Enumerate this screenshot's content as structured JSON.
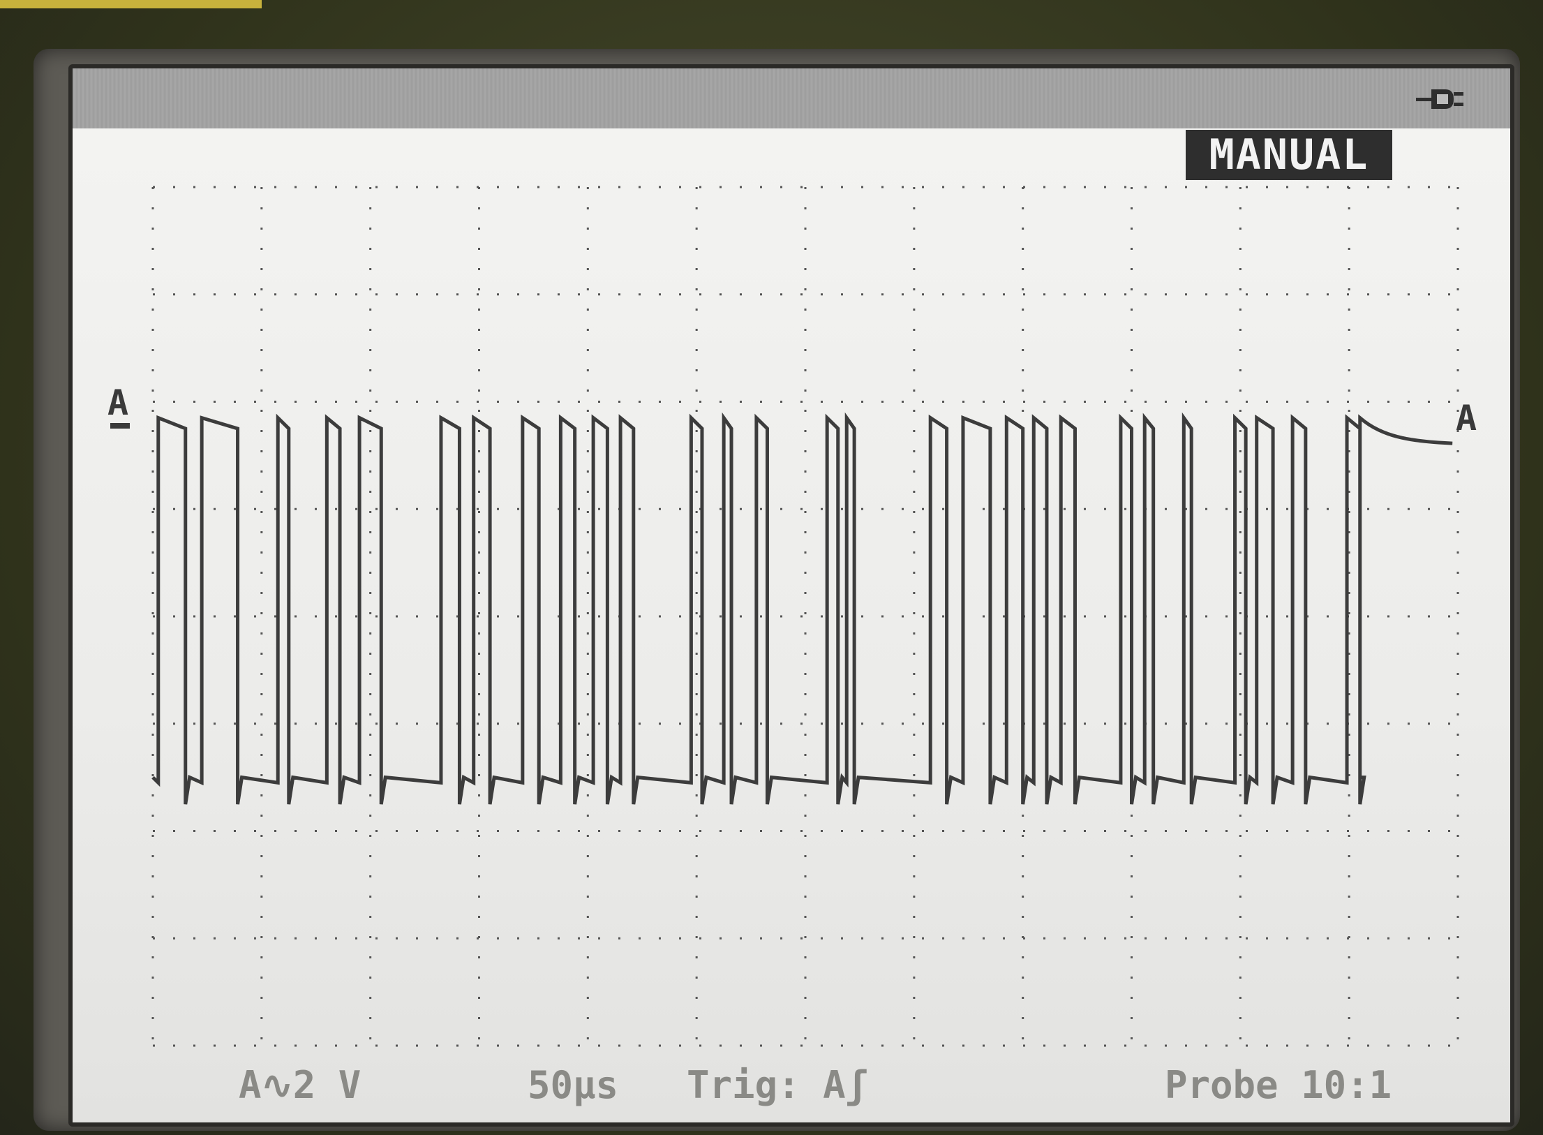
{
  "mode_badge": "MANUAL",
  "channel_marker": "A",
  "status": {
    "volts_per_div": "A∿2 V",
    "time_per_div": "50µs",
    "trigger": "Trig: Aʃ",
    "probe": "Probe 10:1"
  },
  "icons": [
    "power-plug-icon"
  ],
  "colors": {
    "screen": "#f0f0ee",
    "trace": "#3c3c3c",
    "badge_bg": "#2e2e2e",
    "status_text": "#8a8a86"
  },
  "waveform": {
    "high_level_div": 3.35,
    "low_level_div": 0.0,
    "high_segments_div": [
      [
        0.05,
        0.3
      ],
      [
        0.45,
        0.78
      ],
      [
        1.15,
        1.25
      ],
      [
        1.6,
        1.72
      ],
      [
        1.9,
        2.1
      ],
      [
        2.65,
        2.82
      ],
      [
        2.95,
        3.1
      ],
      [
        3.4,
        3.55
      ],
      [
        3.75,
        3.88
      ],
      [
        4.05,
        4.18
      ],
      [
        4.3,
        4.42
      ],
      [
        4.95,
        5.05
      ],
      [
        5.25,
        5.32
      ],
      [
        5.55,
        5.65
      ],
      [
        6.2,
        6.3
      ],
      [
        6.38,
        6.45
      ],
      [
        7.15,
        7.3
      ],
      [
        7.45,
        7.7
      ],
      [
        7.85,
        8.0
      ],
      [
        8.1,
        8.22
      ],
      [
        8.35,
        8.48
      ],
      [
        8.9,
        9.0
      ],
      [
        9.12,
        9.2
      ],
      [
        9.48,
        9.55
      ],
      [
        9.95,
        10.05
      ],
      [
        10.15,
        10.3
      ],
      [
        10.48,
        10.6
      ],
      [
        10.98,
        11.1
      ]
    ],
    "tail_start_div": 11.1,
    "tail_end_level_div": 3.1
  }
}
